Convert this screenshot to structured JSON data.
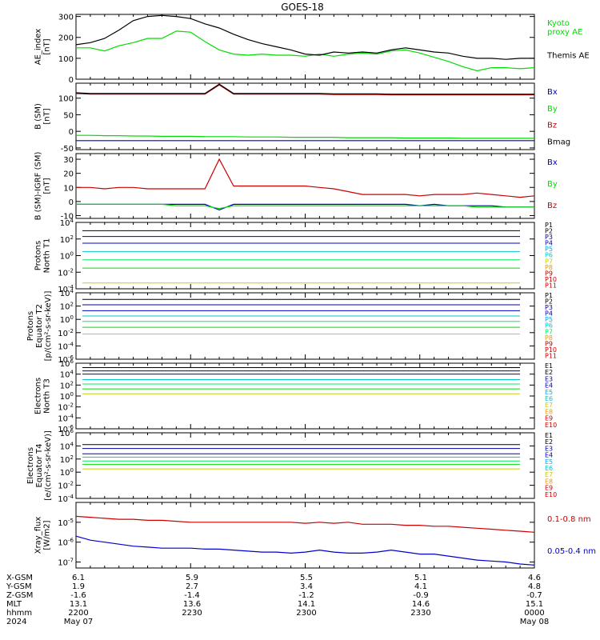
{
  "title": "GOES-18",
  "colors": {
    "axis": "#000000",
    "black": "#000000",
    "green": "#00dd00",
    "red": "#cc0000",
    "blue": "#0000cc",
    "navy": "#00009a",
    "purple": "#6a00a8",
    "cyan": "#00c8c8",
    "teal": "#00cccc",
    "lime": "#00ee66",
    "yellow": "#cccc00",
    "orange": "#ee9900",
    "darkred": "#aa0000",
    "dkblue": "#0033cc",
    "sky": "#00aaee",
    "magenta": "#aa00aa"
  },
  "chart_data": [
    {
      "id": "ae",
      "type": "line",
      "ylabel": "AE_index\n[nT]",
      "ylim": [
        0,
        310
      ],
      "yticks": [
        "0",
        "100",
        "200",
        "300"
      ],
      "series": [
        {
          "name": "Kyoto\nproxy AE",
          "color": "green",
          "y": [
            150,
            150,
            135,
            160,
            175,
            195,
            195,
            230,
            225,
            180,
            140,
            120,
            115,
            120,
            115,
            115,
            110,
            120,
            110,
            120,
            125,
            120,
            135,
            140,
            125,
            105,
            85,
            60,
            40,
            55,
            55,
            50,
            55
          ]
        },
        {
          "name": "Themis AE",
          "color": "black",
          "y": [
            165,
            175,
            195,
            235,
            280,
            300,
            305,
            300,
            290,
            265,
            245,
            215,
            190,
            170,
            155,
            140,
            120,
            115,
            130,
            125,
            130,
            125,
            140,
            150,
            140,
            130,
            125,
            110,
            100,
            100,
            95,
            100,
            100
          ]
        }
      ]
    },
    {
      "id": "bsm",
      "type": "line",
      "ylabel": "B (SM)\n[nT]",
      "ylim": [
        -55,
        145
      ],
      "yticks": [
        "-50",
        "0",
        "50",
        "100"
      ],
      "series": [
        {
          "name": "Bx",
          "color": "blue",
          "y": [
            -28,
            -28,
            -28,
            -28,
            -28,
            -28,
            -28,
            -28,
            -28,
            -28,
            -28,
            -28,
            -28,
            -28,
            -28,
            -28,
            -28,
            -28,
            -28,
            -28,
            -28,
            -28,
            -28,
            -28,
            -28,
            -28,
            -28,
            -28,
            -28,
            -28,
            -28,
            -28,
            -28
          ]
        },
        {
          "name": "By",
          "color": "green",
          "y": [
            -12,
            -12,
            -13,
            -13,
            -14,
            -14,
            -15,
            -15,
            -15,
            -16,
            -16,
            -16,
            -17,
            -17,
            -17,
            -18,
            -18,
            -18,
            -18,
            -19,
            -19,
            -19,
            -19,
            -20,
            -20,
            -20,
            -20,
            -21,
            -21,
            -21,
            -21,
            -21,
            -21
          ]
        },
        {
          "name": "Bz",
          "color": "red",
          "y": [
            114,
            112,
            112,
            112,
            112,
            112,
            112,
            112,
            112,
            112,
            140,
            112,
            112,
            112,
            112,
            112,
            112,
            112,
            111,
            111,
            111,
            111,
            110,
            110,
            110,
            110,
            110,
            110,
            110,
            110,
            110,
            110,
            110
          ]
        },
        {
          "name": "Bmag",
          "color": "black",
          "y": [
            116,
            114,
            114,
            114,
            114,
            114,
            114,
            114,
            114,
            114,
            142,
            114,
            114,
            114,
            114,
            114,
            114,
            114,
            113,
            113,
            113,
            113,
            112,
            112,
            112,
            112,
            112,
            112,
            112,
            112,
            112,
            112,
            112
          ]
        }
      ]
    },
    {
      "id": "bigrf",
      "type": "line",
      "ylabel": "B (SM)-IGRF (SM)\n[nT]",
      "ylim": [
        -12,
        34
      ],
      "yticks": [
        "-10",
        "0",
        "10",
        "20",
        "30"
      ],
      "series": [
        {
          "name": "Bx",
          "color": "blue",
          "y": [
            -2,
            -2,
            -2,
            -2,
            -2,
            -2,
            -2,
            -2,
            -2,
            -2,
            -6,
            -2,
            -2,
            -2,
            -2,
            -2,
            -2,
            -2,
            -2,
            -2,
            -2,
            -2,
            -2,
            -2,
            -3,
            -2,
            -3,
            -3,
            -3,
            -3,
            -4,
            -4,
            -4
          ]
        },
        {
          "name": "By",
          "color": "green",
          "y": [
            -2,
            -2,
            -2,
            -2,
            -2,
            -2,
            -2,
            -3,
            -3,
            -3,
            -5,
            -3,
            -3,
            -3,
            -3,
            -3,
            -3,
            -3,
            -3,
            -3,
            -3,
            -3,
            -3,
            -3,
            -3,
            -3,
            -3,
            -3,
            -4,
            -4,
            -4,
            -4,
            -4
          ]
        },
        {
          "name": "Bz",
          "color": "red",
          "y": [
            10,
            10,
            9,
            10,
            10,
            9,
            9,
            9,
            9,
            9,
            30,
            11,
            11,
            11,
            11,
            11,
            11,
            10,
            9,
            7,
            5,
            5,
            5,
            5,
            4,
            5,
            5,
            5,
            6,
            5,
            4,
            3,
            4
          ]
        }
      ]
    },
    {
      "id": "pn",
      "type": "line",
      "ylabel": "Protons\nNorth T1",
      "yexp": [
        -4,
        4
      ],
      "yticks": [
        "10^-4",
        "10^-2",
        "10^0",
        "10^2",
        "10^4"
      ],
      "flat_levels": [
        3.0,
        2.3,
        1.5,
        0.5,
        -0.5,
        -1.5,
        -3.3
      ],
      "labels": [
        "P1",
        "P2",
        "P3",
        "P4",
        "P5",
        "P6",
        "P7",
        "P8",
        "P9",
        "P10",
        "P11"
      ],
      "label_colors": [
        "black",
        "black",
        "navy",
        "blue",
        "sky",
        "cyan",
        "yellow",
        "orange",
        "darkred",
        "red",
        "red"
      ]
    },
    {
      "id": "pe",
      "type": "line",
      "ylabel": "Protons\nEquator T2\n[p/(cm²-s-sr-keV)]",
      "yexp": [
        -6,
        4
      ],
      "yticks": [
        "10^-6",
        "10^-4",
        "10^-2",
        "10^0",
        "10^2",
        "10^4"
      ],
      "flat_levels": [
        3.0,
        2.2,
        1.3,
        0.5,
        -0.3,
        -1.2,
        -2.2
      ],
      "labels": [
        "P1",
        "P2",
        "P3",
        "P4",
        "P5",
        "P6",
        "P7",
        "P8",
        "P9",
        "P10",
        "P11"
      ],
      "label_colors": [
        "black",
        "black",
        "navy",
        "blue",
        "sky",
        "cyan",
        "lime",
        "orange",
        "darkred",
        "red",
        "red"
      ]
    },
    {
      "id": "en",
      "type": "line",
      "ylabel": "Electrons\nNorth T3",
      "yexp": [
        -6,
        6
      ],
      "yticks": [
        "10^-6",
        "10^-4",
        "10^-2",
        "10^0",
        "10^2",
        "10^4",
        "10^6"
      ],
      "flat_levels": [
        5.2,
        4.6,
        4.0,
        3.0,
        2.2,
        1.3,
        0.4
      ],
      "labels": [
        "E1",
        "E2",
        "E3",
        "E4",
        "E5",
        "E6",
        "E7",
        "E8",
        "E9",
        "E10"
      ],
      "label_colors": [
        "black",
        "black",
        "navy",
        "blue",
        "sky",
        "cyan",
        "yellow",
        "orange",
        "red",
        "red"
      ]
    },
    {
      "id": "ee",
      "type": "line",
      "ylabel": "Electrons\nEquator T4\n[e/(cm²-s-sr-keV)]",
      "yexp": [
        -4,
        6
      ],
      "yticks": [
        "10^-4",
        "10^-2",
        "10^0",
        "10^2",
        "10^4",
        "10^6"
      ],
      "flat_levels": [
        4.2,
        3.6,
        2.8,
        2.3,
        1.7,
        1.2,
        0.5
      ],
      "labels": [
        "E1",
        "E2",
        "E3",
        "E4",
        "E5",
        "E6",
        "E7",
        "E8",
        "E9",
        "E10"
      ],
      "label_colors": [
        "black",
        "black",
        "navy",
        "blue",
        "sky",
        "cyan",
        "yellow",
        "orange",
        "red",
        "red"
      ]
    },
    {
      "id": "xray",
      "type": "line",
      "ylabel": "Xray_flux\n[W/m2]",
      "yexp": [
        -7.3,
        -4
      ],
      "yticks": [
        "10^-7",
        "10^-6",
        "10^-5"
      ],
      "series": [
        {
          "name": "0.1-0.8 nm",
          "color": "red",
          "y": [
            -4.7,
            -4.75,
            -4.8,
            -4.85,
            -4.85,
            -4.9,
            -4.9,
            -4.95,
            -5.0,
            -5.0,
            -5.0,
            -5.0,
            -5.0,
            -5.0,
            -5.0,
            -5.0,
            -5.05,
            -5.0,
            -5.05,
            -5.0,
            -5.1,
            -5.1,
            -5.1,
            -5.15,
            -5.15,
            -5.2,
            -5.2,
            -5.25,
            -5.3,
            -5.35,
            -5.4,
            -5.45,
            -5.5
          ]
        },
        {
          "name": "0.05-0.4 nm",
          "color": "blue",
          "y": [
            -5.7,
            -5.9,
            -6.0,
            -6.1,
            -6.2,
            -6.25,
            -6.3,
            -6.3,
            -6.3,
            -6.35,
            -6.35,
            -6.4,
            -6.45,
            -6.5,
            -6.5,
            -6.55,
            -6.5,
            -6.4,
            -6.5,
            -6.55,
            -6.55,
            -6.5,
            -6.4,
            -6.5,
            -6.6,
            -6.6,
            -6.7,
            -6.8,
            -6.9,
            -6.95,
            -7.0,
            -7.1,
            -7.15
          ]
        }
      ]
    }
  ],
  "orbit": {
    "row_labels": [
      "X-GSM",
      "Y-GSM",
      "Z-GSM",
      "MLT",
      "hhmm",
      "2024"
    ],
    "columns": [
      {
        "vals": [
          "6.1",
          "1.9",
          "-1.6",
          "13.1",
          "2200",
          "May 07"
        ]
      },
      {
        "vals": [
          "5.9",
          "2.7",
          "-1.4",
          "13.6",
          "2230",
          ""
        ]
      },
      {
        "vals": [
          "5.5",
          "3.4",
          "-1.2",
          "14.1",
          "2300",
          ""
        ]
      },
      {
        "vals": [
          "5.1",
          "4.1",
          "-0.9",
          "14.6",
          "2330",
          ""
        ]
      },
      {
        "vals": [
          "4.6",
          "4.8",
          "-0.7",
          "15.1",
          "0000",
          "May 08"
        ]
      }
    ]
  }
}
